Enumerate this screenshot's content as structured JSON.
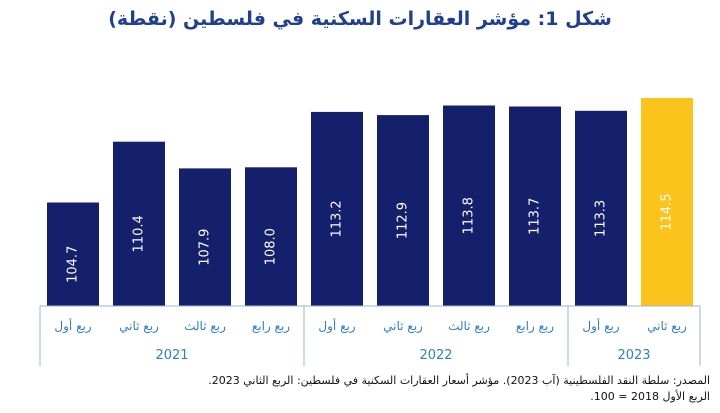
{
  "title": "شكل 1: مؤشر العقارات السكنية في فلسطين (نقطة)",
  "source_line1": "المصدر: سلطة النقد الفلسطينية (آب 2023). مؤشر أسعار العقارات السكنية في فلسطين: الربع الثاني 2023.",
  "source_line2": "الربع الأول 2018 = 100.",
  "colors": {
    "bar": "#14206b",
    "highlight": "#fbc31b",
    "label_text": "#2e7fc4"
  },
  "chart_data": {
    "type": "bar",
    "title": "شكل 1: مؤشر العقارات السكنية في فلسطين (نقطة)",
    "ylim": [
      95,
      116
    ],
    "grid": false,
    "categories": [
      "ربع أول",
      "ربع ثاني",
      "ربع ثالث",
      "ربع رابع",
      "ربع أول",
      "ربع ثاني",
      "ربع ثالث",
      "ربع رابع",
      "ربع أول",
      "ربع ثاني"
    ],
    "years": [
      "2021",
      "2021",
      "2021",
      "2021",
      "2022",
      "2022",
      "2022",
      "2022",
      "2023",
      "2023"
    ],
    "year_groups": [
      {
        "year": "2021",
        "count": 4
      },
      {
        "year": "2022",
        "count": 4
      },
      {
        "year": "2023",
        "count": 2
      }
    ],
    "values": [
      104.7,
      110.4,
      107.9,
      108.0,
      113.2,
      112.9,
      113.8,
      113.7,
      113.3,
      114.5
    ],
    "value_labels": [
      "104.7",
      "110.4",
      "107.9",
      "108.0",
      "113.2",
      "112.9",
      "113.8",
      "113.7",
      "113.3",
      "114.5"
    ],
    "highlighted_index": 9
  }
}
